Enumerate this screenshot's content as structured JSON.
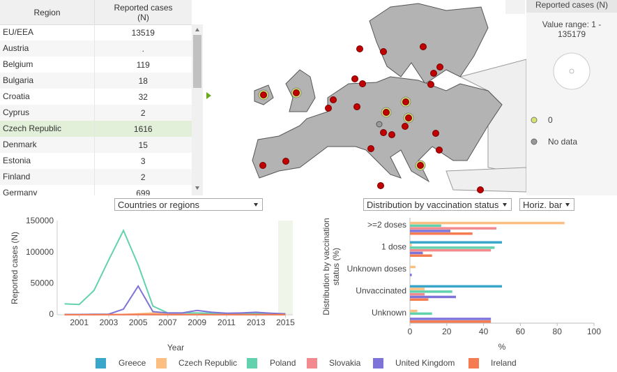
{
  "table": {
    "headers": [
      "Region",
      "Reported cases (N)"
    ],
    "rows": [
      [
        "EU/EEA",
        13519
      ],
      [
        "Austria",
        "."
      ],
      [
        "Belgium",
        119
      ],
      [
        "Bulgaria",
        18
      ],
      [
        "Croatia",
        32
      ],
      [
        "Cyprus",
        2
      ],
      [
        "Czech Republic",
        1616
      ],
      [
        "Denmark",
        15
      ],
      [
        "Estonia",
        3
      ],
      [
        "Finland",
        2
      ],
      [
        "Germany",
        699
      ]
    ]
  },
  "map": {
    "legend_title": "Reported cases (N)",
    "value_range": "Value range: 1 - 135179",
    "legend_items": [
      "0",
      "No data"
    ]
  },
  "controls": {
    "region_select": "Countries or regions",
    "measure_select": "Distribution by vaccination status",
    "chart_type_select": "Horiz. bar"
  },
  "chart_data": [
    {
      "type": "line",
      "x_label": "Year",
      "y_label": "Reported cases (N)",
      "x": [
        2000,
        2001,
        2002,
        2003,
        2004,
        2005,
        2006,
        2007,
        2008,
        2009,
        2010,
        2011,
        2012,
        2013,
        2014,
        2015
      ],
      "xlim": [
        1999.5,
        2015.5
      ],
      "xticks": [
        2001,
        2003,
        2005,
        2007,
        2009,
        2011,
        2013,
        2015
      ],
      "ylim": [
        0,
        150000
      ],
      "yticks": [
        0,
        50000,
        100000,
        150000
      ],
      "series": [
        {
          "name": "Greece",
          "color": "#3aa6c9",
          "values": [
            100,
            100,
            100,
            200,
            300,
            200,
            100,
            100,
            100,
            100,
            100,
            50,
            50,
            50,
            50,
            50
          ]
        },
        {
          "name": "Czech Republic",
          "color": "#fbbf82",
          "values": [
            300,
            300,
            300,
            400,
            500,
            1500,
            3000,
            1000,
            500,
            500,
            400,
            400,
            500,
            600,
            400,
            1616
          ]
        },
        {
          "name": "Poland",
          "color": "#62d2ae",
          "values": [
            17500,
            16500,
            39000,
            88000,
            135179,
            80000,
            14000,
            3000,
            3000,
            3000,
            2500,
            2000,
            2000,
            2500,
            2000,
            1600
          ]
        },
        {
          "name": "Slovakia",
          "color": "#f28a8e",
          "values": [
            100,
            100,
            100,
            100,
            100,
            100,
            100,
            100,
            100,
            100,
            100,
            100,
            100,
            100,
            100,
            100
          ]
        },
        {
          "name": "United Kingdom",
          "color": "#7d73d9",
          "values": [
            500,
            500,
            800,
            1000,
            9000,
            46000,
            5000,
            3000,
            3000,
            7000,
            4000,
            2500,
            3000,
            4000,
            2500,
            1500
          ]
        },
        {
          "name": "Ireland",
          "color": "#f57b50",
          "values": [
            200,
            200,
            200,
            300,
            400,
            700,
            500,
            300,
            300,
            300,
            300,
            300,
            300,
            300,
            300,
            300
          ]
        }
      ]
    },
    {
      "type": "hbar",
      "x_label": "%",
      "y_label": "Distribution by vaccination status (%)",
      "categories": [
        ">=2 doses",
        "1 dose",
        "Unknown doses",
        "Unvaccinated",
        "Unknown"
      ],
      "xlim": [
        0,
        100
      ],
      "xticks": [
        0,
        20,
        40,
        60,
        80,
        100
      ],
      "series": [
        {
          "name": "Greece",
          "color": "#3aa6c9",
          "values": [
            0,
            50,
            0,
            50,
            0
          ]
        },
        {
          "name": "Czech Republic",
          "color": "#fbbf82",
          "values": [
            84,
            1,
            3,
            8,
            4
          ]
        },
        {
          "name": "Poland",
          "color": "#62d2ae",
          "values": [
            17,
            46,
            0,
            23,
            12
          ]
        },
        {
          "name": "Slovakia",
          "color": "#f28a8e",
          "values": [
            47,
            44,
            0,
            8,
            0
          ]
        },
        {
          "name": "United Kingdom",
          "color": "#7d73d9",
          "values": [
            22,
            7,
            1,
            25,
            44
          ]
        },
        {
          "name": "Ireland",
          "color": "#f57b50",
          "values": [
            34,
            12,
            0,
            10,
            44
          ]
        }
      ]
    }
  ]
}
